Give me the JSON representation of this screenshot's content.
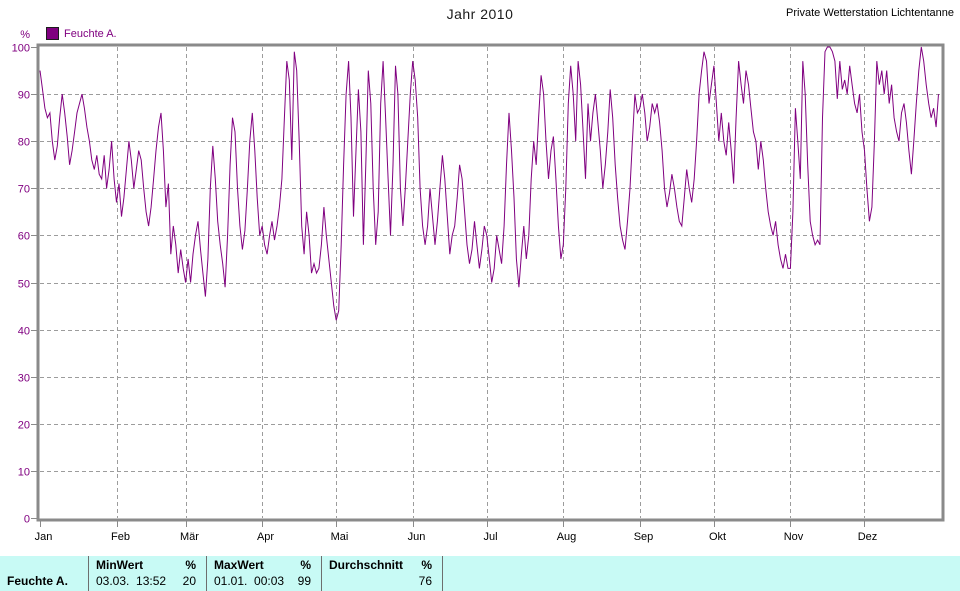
{
  "header": {
    "title": "Jahr 2010",
    "station": "Private Wetterstation Lichtentanne"
  },
  "legend": {
    "label": "Feuchte A.",
    "color": "#800080"
  },
  "chart_data": {
    "type": "line",
    "title": "Jahr 2010",
    "ylabel": "%",
    "ylim": [
      0,
      100
    ],
    "y_tick_step": 10,
    "grid": true,
    "legend_position": "top-left",
    "x_tick_labels": [
      "Jan",
      "Feb",
      "Mär",
      "Apr",
      "Mai",
      "Jun",
      "Jul",
      "Aug",
      "Sep",
      "Okt",
      "Nov",
      "Dez"
    ],
    "month_start_days": [
      0,
      31,
      59,
      90,
      120,
      151,
      181,
      212,
      243,
      273,
      304,
      334
    ],
    "days_in_year": 365,
    "series": [
      {
        "name": "Feuchte A.",
        "color": "#800080",
        "values": [
          95,
          91,
          87,
          85,
          86,
          80,
          76,
          79,
          85,
          90,
          86,
          81,
          75,
          78,
          82,
          86,
          88,
          90,
          87,
          83,
          80,
          76,
          74,
          77,
          73,
          72,
          77,
          70,
          74,
          80,
          72,
          67,
          71,
          64,
          68,
          74,
          80,
          76,
          70,
          74,
          78,
          76,
          70,
          65,
          62,
          66,
          72,
          78,
          83,
          86,
          78,
          66,
          71,
          56,
          62,
          58,
          52,
          57,
          53,
          50,
          55,
          50,
          56,
          60,
          63,
          57,
          52,
          47,
          55,
          70,
          79,
          72,
          63,
          58,
          54,
          49,
          60,
          75,
          85,
          82,
          70,
          62,
          57,
          61,
          70,
          80,
          86,
          78,
          68,
          60,
          62,
          58,
          56,
          60,
          63,
          59,
          62,
          66,
          72,
          85,
          97,
          93,
          76,
          99,
          95,
          80,
          62,
          56,
          65,
          60,
          52,
          54,
          52,
          53,
          58,
          66,
          60,
          55,
          50,
          45,
          42,
          44,
          58,
          75,
          90,
          97,
          85,
          64,
          78,
          91,
          82,
          58,
          75,
          95,
          88,
          70,
          58,
          65,
          88,
          97,
          85,
          72,
          60,
          75,
          96,
          90,
          70,
          62,
          70,
          80,
          90,
          97,
          93,
          85,
          70,
          62,
          58,
          62,
          70,
          64,
          58,
          63,
          70,
          77,
          72,
          64,
          56,
          60,
          62,
          68,
          75,
          72,
          65,
          58,
          54,
          57,
          63,
          58,
          53,
          57,
          62,
          60,
          55,
          50,
          53,
          60,
          57,
          54,
          62,
          75,
          86,
          78,
          68,
          55,
          49,
          56,
          62,
          55,
          60,
          72,
          80,
          75,
          85,
          94,
          90,
          80,
          72,
          78,
          81,
          72,
          62,
          55,
          58,
          70,
          88,
          96,
          90,
          80,
          97,
          92,
          82,
          72,
          88,
          80,
          86,
          90,
          84,
          78,
          70,
          75,
          82,
          91,
          85,
          75,
          68,
          62,
          59,
          57,
          63,
          70,
          80,
          90,
          86,
          87,
          90,
          86,
          80,
          83,
          88,
          86,
          88,
          84,
          78,
          70,
          66,
          69,
          73,
          70,
          66,
          63,
          62,
          68,
          74,
          70,
          67,
          72,
          80,
          90,
          95,
          99,
          97,
          88,
          92,
          96,
          88,
          80,
          86,
          80,
          77,
          84,
          78,
          71,
          85,
          97,
          92,
          88,
          95,
          92,
          87,
          82,
          80,
          74,
          80,
          76,
          70,
          65,
          62,
          60,
          63,
          58,
          55,
          53,
          56,
          53,
          53,
          65,
          87,
          80,
          72,
          97,
          90,
          75,
          63,
          60,
          58,
          59,
          58,
          85,
          99,
          100,
          100,
          99,
          97,
          89,
          97,
          91,
          93,
          90,
          96,
          92,
          88,
          86,
          90,
          82,
          78,
          70,
          63,
          66,
          80,
          97,
          92,
          95,
          90,
          95,
          88,
          92,
          85,
          82,
          80,
          86,
          88,
          84,
          78,
          73,
          80,
          88,
          95,
          100,
          97,
          92,
          88,
          85,
          87,
          83,
          90
        ]
      }
    ]
  },
  "stats_table": {
    "row_label": "Feuchte A.",
    "columns": [
      {
        "header": "MinWert",
        "unit": "%",
        "value_text": "03.03.  13:52",
        "value": "20"
      },
      {
        "header": "MaxWert",
        "unit": "%",
        "value_text": "01.01.  00:03",
        "value": "99"
      },
      {
        "header": "Durchschnitt",
        "unit": "%",
        "value_text": "",
        "value": "76"
      }
    ]
  },
  "colors": {
    "line": "#800080",
    "axis_text": "#800080",
    "grid": "#9c9c9c",
    "plot_border": "#8a8a8a",
    "table_bg": "#c8faf5"
  }
}
